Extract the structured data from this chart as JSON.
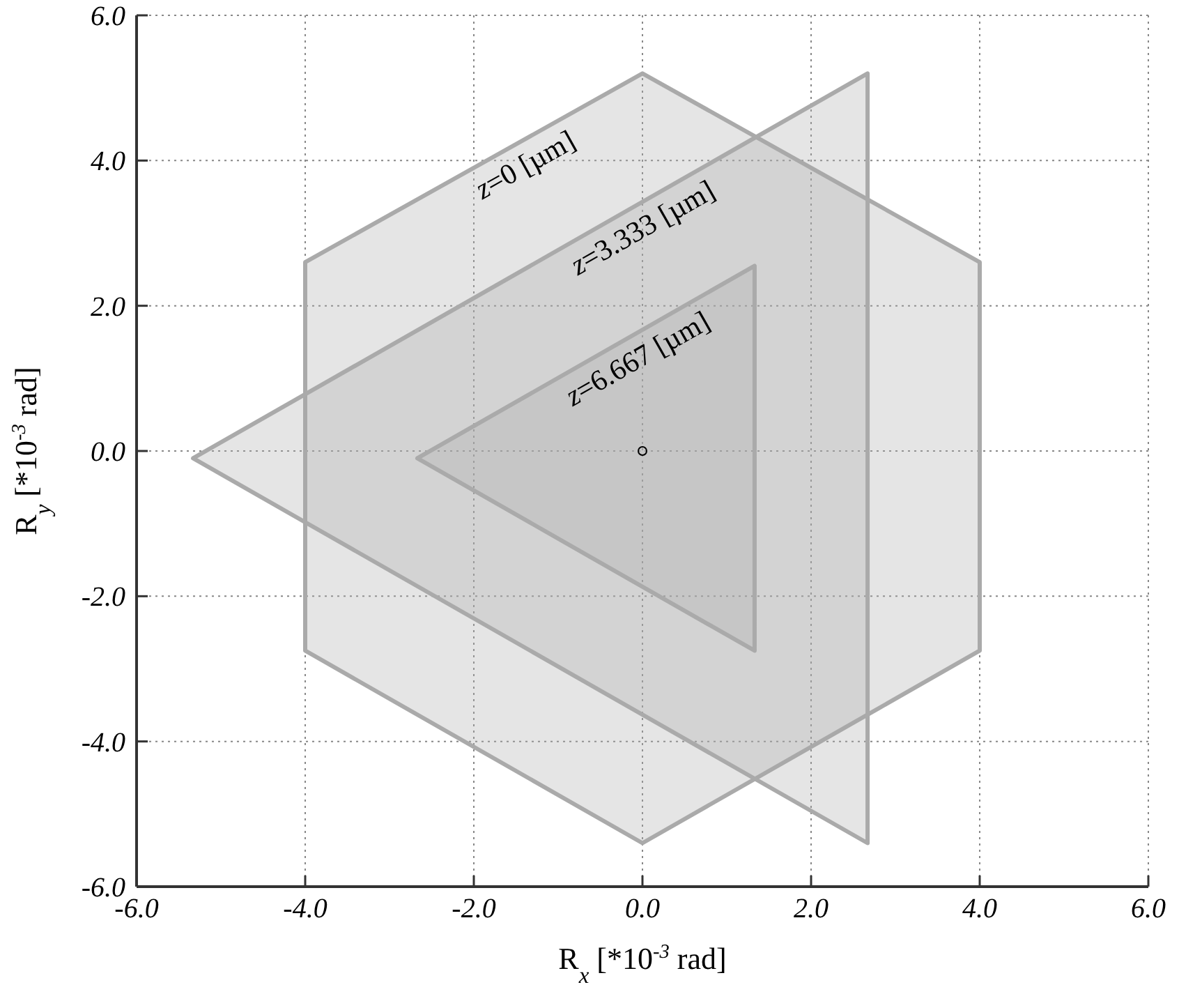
{
  "chart_data": {
    "type": "area",
    "xlabel": "R$_{x}$ [*10$^{-3}$ rad]",
    "ylabel": "R$_{y}$ [*10$^{-3}$ rad]",
    "xlim": [
      -6,
      6
    ],
    "ylim": [
      -6,
      6
    ],
    "xticks": [
      {
        "value": -6,
        "label": "-6.0"
      },
      {
        "value": -4,
        "label": "-4.0"
      },
      {
        "value": -2,
        "label": "-2.0"
      },
      {
        "value": 0,
        "label": "0.0"
      },
      {
        "value": 2,
        "label": "2.0"
      },
      {
        "value": 4,
        "label": "4.0"
      },
      {
        "value": 6,
        "label": "6.0"
      }
    ],
    "yticks": [
      {
        "value": -6,
        "label": "-6.0"
      },
      {
        "value": -4,
        "label": "-4.0"
      },
      {
        "value": -2,
        "label": "-2.0"
      },
      {
        "value": 0,
        "label": "0.0"
      },
      {
        "value": 2,
        "label": "2.0"
      },
      {
        "value": 4,
        "label": "4.0"
      },
      {
        "value": 6,
        "label": "6.0"
      }
    ],
    "grid": true,
    "series": [
      {
        "name": "z=0 [µm]",
        "color": "#aaaaaa",
        "x": [
          -4,
          0,
          4,
          4,
          0,
          -4
        ],
        "values": [
          2.6,
          5.2,
          2.6,
          -2.75,
          -5.4,
          -2.75
        ]
      },
      {
        "name": "z=3.333 [µm]",
        "color": "#aaaaaa",
        "x": [
          -5.33,
          2.67,
          2.67
        ],
        "values": [
          -0.1,
          5.2,
          -5.4
        ]
      },
      {
        "name": "z=6.667 [µm]",
        "color": "#aaaaaa",
        "x": [
          -2.67,
          1.33,
          1.33
        ],
        "values": [
          -0.1,
          2.55,
          -2.75
        ]
      },
      {
        "type": "scatter",
        "color": "#000000",
        "marker": "circle",
        "x": [
          0
        ],
        "values": [
          0
        ]
      }
    ]
  }
}
